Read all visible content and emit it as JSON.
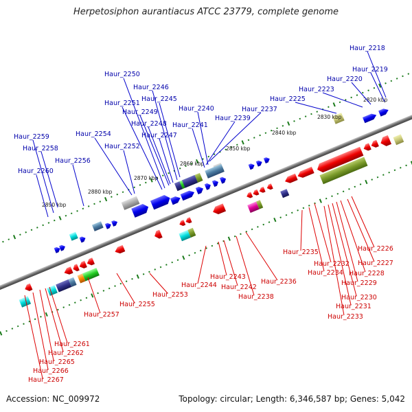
{
  "title": "Herpetosiphon aurantiacus ATCC 23779, complete genome",
  "footer": {
    "accession": "Accession: NC_009972",
    "summary": "Topology: circular; Length: 6,346,587 bp; Genes: 5,042"
  },
  "colors": {
    "forward_label": "#0000aa",
    "reverse_label": "#cc0000",
    "forward_gene": "#0000ee",
    "reverse_gene": "#ee0000",
    "backbone": "#808080",
    "tick": "#1a7a1a"
  },
  "kbp_markers": [
    "2820 kbp",
    "2830 kbp",
    "2840 kbp",
    "2850 kbp",
    "2860 kbp",
    "2870 kbp",
    "2880 kbp",
    "2890 kbp"
  ],
  "forward_labels": [
    "Haur_2218",
    "Haur_2219",
    "Haur_2220",
    "Haur_2223",
    "Haur_2225",
    "Haur_2237",
    "Haur_2239",
    "Haur_2240",
    "Haur_2241",
    "Haur_2245",
    "Haur_2246",
    "Haur_2247",
    "Haur_2248",
    "Haur_2249",
    "Haur_2250",
    "Haur_2251",
    "Haur_2252",
    "Haur_2254",
    "Haur_2256",
    "Haur_2258",
    "Haur_2259",
    "Haur_2260"
  ],
  "reverse_labels": [
    "Haur_2226",
    "Haur_2227",
    "Haur_2228",
    "Haur_2229",
    "Haur_2230",
    "Haur_2231",
    "Haur_2232",
    "Haur_2233",
    "Haur_2234",
    "Haur_2235",
    "Haur_2236",
    "Haur_2238",
    "Haur_2242",
    "Haur_2243",
    "Haur_2244",
    "Haur_2253",
    "Haur_2255",
    "Haur_2257",
    "Haur_2261",
    "Haur_2262",
    "Haur_2265",
    "Haur_2266",
    "Haur_2267"
  ]
}
